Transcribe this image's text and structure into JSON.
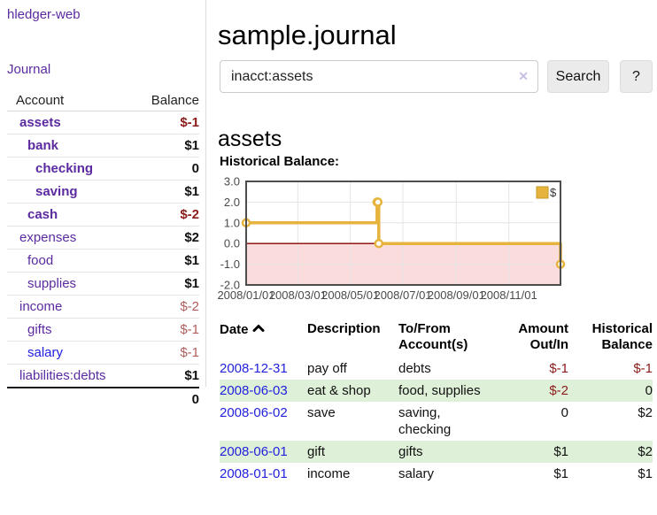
{
  "sidebar": {
    "brand": "hledger-web",
    "journal_link": "Journal",
    "accounts_table": {
      "headers": {
        "account": "Account",
        "balance": "Balance"
      },
      "rows": [
        {
          "name": "assets",
          "depth": 1,
          "bold": true,
          "balance": "$-1",
          "neg": "strong"
        },
        {
          "name": "bank",
          "depth": 2,
          "bold": true,
          "balance": "$1"
        },
        {
          "name": "checking",
          "depth": 3,
          "bold": true,
          "balance": "0"
        },
        {
          "name": "saving",
          "depth": 3,
          "bold": true,
          "balance": "$1"
        },
        {
          "name": "cash",
          "depth": 2,
          "bold": true,
          "balance": "$-2",
          "neg": "strong"
        },
        {
          "name": "expenses",
          "depth": 1,
          "bold": false,
          "balance": "$2"
        },
        {
          "name": "food",
          "depth": 2,
          "bold": false,
          "balance": "$1"
        },
        {
          "name": "supplies",
          "depth": 2,
          "bold": false,
          "balance": "$1"
        },
        {
          "name": "income",
          "depth": 1,
          "bold": false,
          "balance": "$-2",
          "neg": "muted"
        },
        {
          "name": "gifts",
          "depth": 2,
          "bold": false,
          "balance": "$-1",
          "neg": "muted"
        },
        {
          "name": "salary",
          "depth": 2,
          "bold": false,
          "balance": "$-1",
          "neg": "muted",
          "link_style": "blue"
        },
        {
          "name": "liabilities:debts",
          "depth": 1,
          "bold": false,
          "balance": "$1"
        }
      ],
      "total_balance": "0"
    }
  },
  "main": {
    "title": "sample.journal",
    "search": {
      "value": "inacct:assets",
      "clear_icon": "✕",
      "search_label": "Search",
      "help_label": "?"
    },
    "account_heading": "assets",
    "chart_label": "Historical Balance:"
  },
  "chart_data": {
    "type": "line",
    "title": "Historical Balance",
    "step": true,
    "legend": [
      {
        "label": "$",
        "color": "#e6b33d"
      }
    ],
    "legend_position": "top-right",
    "grid": true,
    "y_ticks": [
      3.0,
      2.0,
      1.0,
      0.0,
      -1.0,
      -2.0
    ],
    "ylim": [
      -2,
      3
    ],
    "x_tick_labels": [
      "2008/01/01",
      "2008/03/01",
      "2008/05/01",
      "2008/07/01",
      "2008/09/01",
      "2008/11/01"
    ],
    "x_tick_days": [
      0,
      60,
      121,
      182,
      244,
      305
    ],
    "xlim_days": [
      0,
      365
    ],
    "series": [
      {
        "name": "$",
        "color": "#e6b33d",
        "point_dates": [
          "2008-01-01",
          "2008-06-01",
          "2008-06-02",
          "2008-06-03",
          "2008-12-31"
        ],
        "points_day_value": [
          [
            0,
            1
          ],
          [
            152,
            2
          ],
          [
            153,
            2
          ],
          [
            154,
            0
          ],
          [
            365,
            -1
          ]
        ]
      }
    ],
    "negative_region_fill": "#fadcdc",
    "zero_line_color": "#8b0000"
  },
  "transactions": {
    "headers": {
      "date": "Date",
      "description": "Description",
      "accounts": "To/From\nAccount(s)",
      "amount": "Amount\nOut/In",
      "balance": "Historical\nBalance"
    },
    "sort_icon": "chevron-up",
    "rows": [
      {
        "date": "2008-12-31",
        "description": "pay off",
        "accounts": "debts",
        "amount": "$-1",
        "balance": "$-1"
      },
      {
        "date": "2008-06-03",
        "description": "eat & shop",
        "accounts": "food, supplies",
        "amount": "$-2",
        "balance": "0"
      },
      {
        "date": "2008-06-02",
        "description": "save",
        "accounts": "saving,\nchecking",
        "amount": "0",
        "balance": "$2"
      },
      {
        "date": "2008-06-01",
        "description": "gift",
        "accounts": "gifts",
        "amount": "$1",
        "balance": "$2"
      },
      {
        "date": "2008-01-01",
        "description": "income",
        "accounts": "salary",
        "amount": "$1",
        "balance": "$1"
      }
    ]
  },
  "colors": {
    "link_purple": "#5b2aa0",
    "link_blue": "#2222dd",
    "negative_strong": "#8c1b1b",
    "negative_muted": "#b05d5d",
    "row_stripe_green": "#dff0d8",
    "chart_line_gold": "#e6b33d",
    "chart_negative_pink": "#fadcdc",
    "chart_zero_line_red": "#8b0000"
  }
}
